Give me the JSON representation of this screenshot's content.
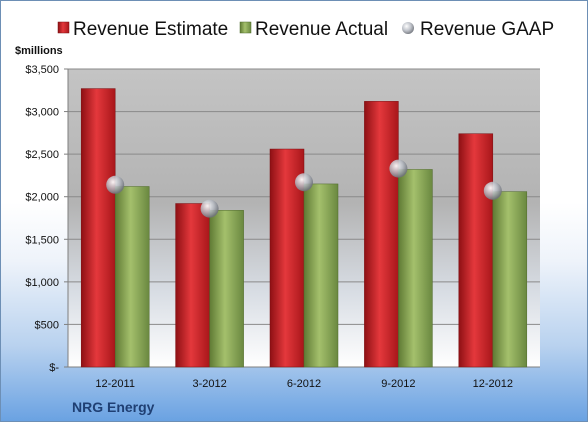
{
  "chart_data": {
    "type": "bar",
    "company": "NRG Energy",
    "unit_label": "$millions",
    "categories": [
      "12-2011",
      "3-2012",
      "6-2012",
      "9-2012",
      "12-2012"
    ],
    "series": [
      {
        "name": "Revenue Estimate",
        "kind": "bar",
        "color": "#d42a2f",
        "values": [
          3270,
          1920,
          2560,
          3120,
          2740
        ]
      },
      {
        "name": "Revenue Actual",
        "kind": "bar",
        "color": "#8fae5c",
        "values": [
          2120,
          1840,
          2150,
          2320,
          2060
        ]
      },
      {
        "name": "Revenue GAAP",
        "kind": "marker",
        "color": "#c0c4cc",
        "values": [
          2140,
          1860,
          2170,
          2330,
          2070
        ]
      }
    ],
    "y_ticks": [
      "$-",
      "$500",
      "$1,000",
      "$1,500",
      "$2,000",
      "$2,500",
      "$3,000",
      "$3,500"
    ],
    "ylim": [
      0,
      3500
    ],
    "grid": true,
    "legend_position": "top"
  }
}
